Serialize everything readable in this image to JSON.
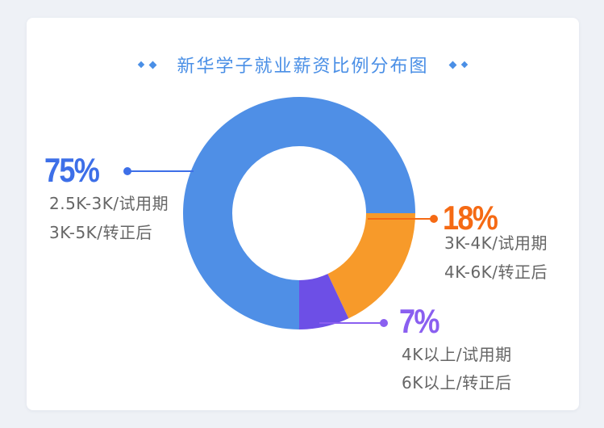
{
  "title": "新华学子就业薪资比例分布图",
  "colors": {
    "title": "#4a8fe6",
    "blue": "#4f8fe6",
    "orange": "#f79a2a",
    "purple": "#6d4fe6",
    "text": "#666666"
  },
  "chart_data": {
    "type": "pie",
    "title": "新华学子就业薪资比例分布图",
    "donut": true,
    "slices": [
      {
        "label": "75%",
        "value": 75,
        "color": "#4f8fe6",
        "lines": [
          "2.5K-3K/试用期",
          "3K-5K/转正后"
        ],
        "label_color": "#3d6fe8"
      },
      {
        "label": "18%",
        "value": 18,
        "color": "#f79a2a",
        "lines": [
          "3K-4K/试用期",
          "4K-6K/转正后"
        ],
        "label_color": "#f56a14"
      },
      {
        "label": "7%",
        "value": 7,
        "color": "#6d4fe6",
        "lines": [
          "4K以上/试用期",
          "6K以上/转正后"
        ],
        "label_color": "#8a5ff0"
      }
    ]
  }
}
